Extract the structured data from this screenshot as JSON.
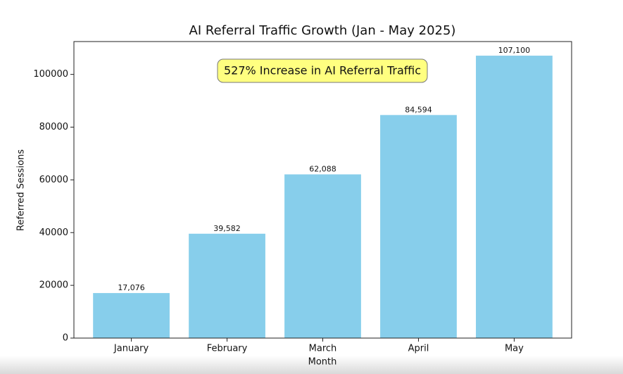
{
  "chart_data": {
    "type": "bar",
    "title": "AI Referral Traffic Growth (Jan - May 2025)",
    "xlabel": "Month",
    "ylabel": "Referred Sessions",
    "annotation": "527% Increase in AI Referral Traffic",
    "categories": [
      "January",
      "February",
      "March",
      "April",
      "May"
    ],
    "values": [
      17076,
      39582,
      62088,
      84594,
      107100
    ],
    "value_labels": [
      "17,076",
      "39,582",
      "62,088",
      "84,594",
      "107,100"
    ],
    "color": "#87ceeb",
    "ylim": [
      0,
      112455
    ],
    "yticks": [
      0,
      20000,
      40000,
      60000,
      80000,
      100000
    ]
  }
}
